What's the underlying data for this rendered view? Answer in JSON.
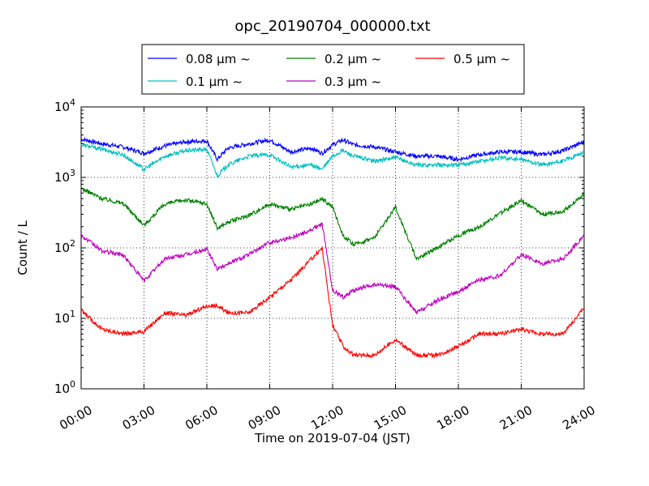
{
  "chart_data": {
    "type": "line",
    "title": "opc_20190704_000000.txt",
    "xlabel": "Time on 2019-07-04 (JST)",
    "ylabel": "Count / L",
    "yscale": "log",
    "ylim": [
      1,
      10000
    ],
    "xlim": [
      "00:00",
      "24:00"
    ],
    "grid": true,
    "legend_position": "top",
    "x_ticks": [
      "00:00",
      "03:00",
      "06:00",
      "09:00",
      "12:00",
      "15:00",
      "18:00",
      "21:00",
      "24:00"
    ],
    "y_ticks": [
      {
        "value": 1,
        "base": "10",
        "exp": "0"
      },
      {
        "value": 10,
        "base": "10",
        "exp": "1"
      },
      {
        "value": 100,
        "base": "10",
        "exp": "2"
      },
      {
        "value": 1000,
        "base": "10",
        "exp": "3"
      },
      {
        "value": 10000,
        "base": "10",
        "exp": "4"
      }
    ],
    "x": [
      "00:00",
      "01:00",
      "02:00",
      "03:00",
      "04:00",
      "05:00",
      "06:00",
      "06:30",
      "07:00",
      "08:00",
      "09:00",
      "10:00",
      "11:00",
      "11:30",
      "12:00",
      "12:30",
      "13:00",
      "14:00",
      "15:00",
      "16:00",
      "17:00",
      "18:00",
      "19:00",
      "20:00",
      "21:00",
      "22:00",
      "23:00",
      "24:00"
    ],
    "series": [
      {
        "name": "0.08 μm ~",
        "color": "#0000ff",
        "values": [
          3500,
          3000,
          2700,
          2200,
          2800,
          3200,
          3300,
          1800,
          2600,
          3000,
          3400,
          2300,
          2600,
          2200,
          2900,
          3400,
          2900,
          2700,
          2300,
          2000,
          2000,
          1800,
          2100,
          2300,
          2300,
          2100,
          2400,
          3200
        ]
      },
      {
        "name": "0.1 μm ~",
        "color": "#00bfbf",
        "values": [
          2900,
          2500,
          2100,
          1300,
          2000,
          2400,
          2500,
          1050,
          1500,
          2000,
          2100,
          1400,
          1500,
          1300,
          2000,
          2400,
          2000,
          1700,
          1900,
          1500,
          1500,
          1500,
          1700,
          1900,
          1800,
          1500,
          1700,
          2300
        ]
      },
      {
        "name": "0.2 μm ~",
        "color": "#008000",
        "values": [
          700,
          500,
          430,
          210,
          420,
          480,
          420,
          190,
          230,
          290,
          420,
          350,
          420,
          500,
          380,
          150,
          110,
          140,
          380,
          70,
          100,
          150,
          200,
          310,
          470,
          300,
          330,
          580
        ]
      },
      {
        "name": "0.3 μm ~",
        "color": "#bf00bf",
        "values": [
          150,
          90,
          80,
          34,
          70,
          80,
          95,
          50,
          60,
          80,
          120,
          140,
          180,
          220,
          25,
          20,
          25,
          30,
          28,
          12,
          18,
          24,
          35,
          40,
          80,
          60,
          70,
          150
        ]
      },
      {
        "name": "0.5 μm ~",
        "color": "#ff0000",
        "values": [
          13,
          7,
          6,
          6.5,
          12,
          11,
          15,
          15,
          12,
          12,
          20,
          35,
          70,
          100,
          8,
          4,
          3,
          3,
          5,
          3,
          3,
          4,
          6,
          6,
          7,
          6,
          6,
          14
        ]
      }
    ]
  }
}
